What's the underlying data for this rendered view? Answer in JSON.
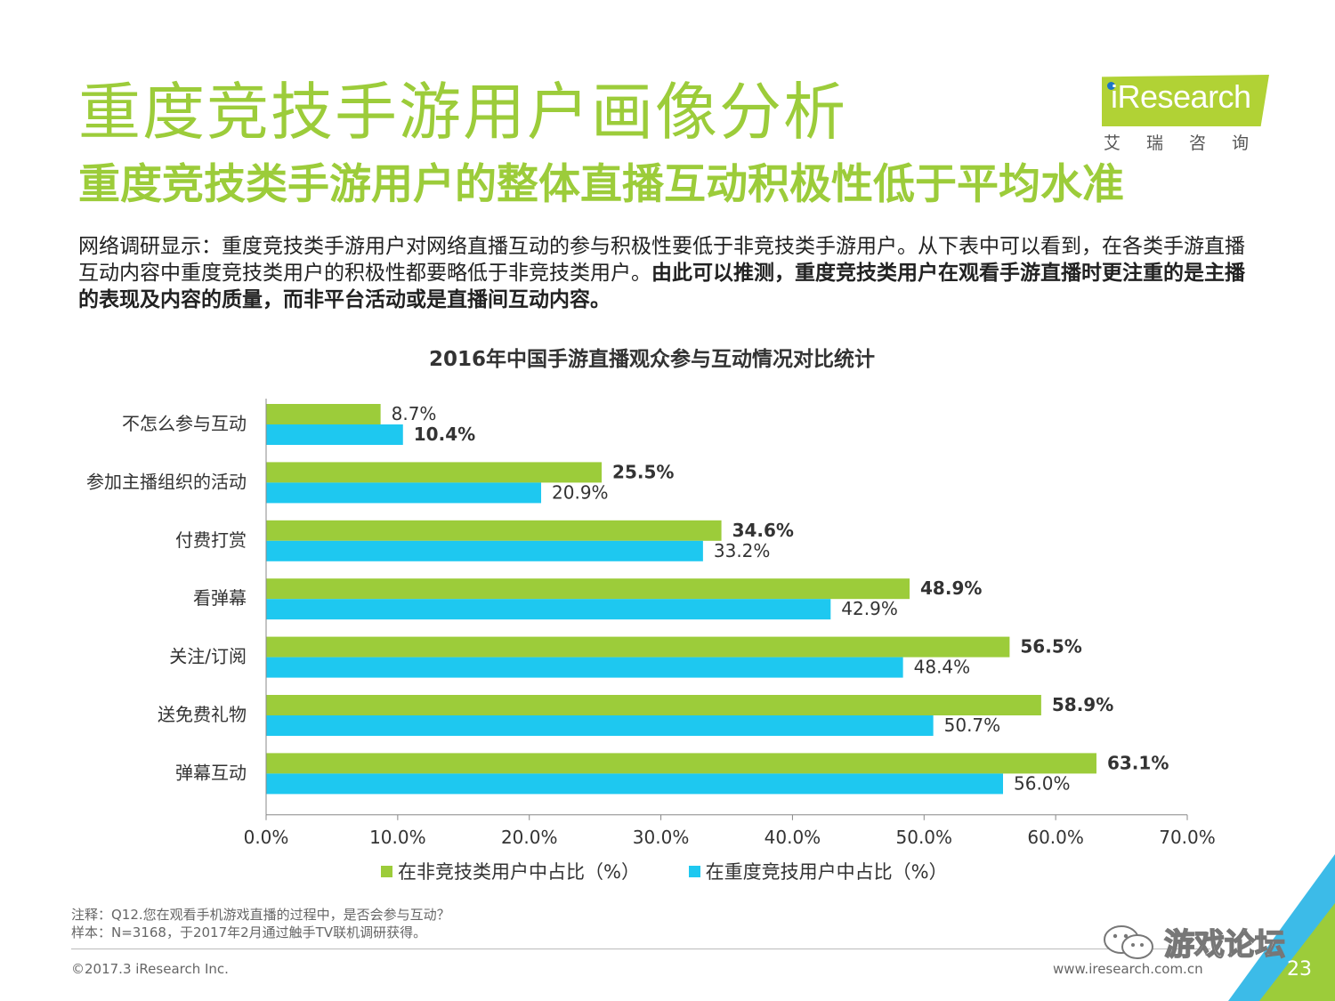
{
  "header": {
    "title": "重度竞技手游用户画像分析",
    "subtitle": "重度竞技类手游用户的整体直播互动积极性低于平均水准"
  },
  "logo": {
    "brand": "iResearch",
    "brand_rest": "Research",
    "brand_cn": "艾瑞咨询"
  },
  "intro": {
    "normal": "网络调研显示：重度竞技类手游用户对网络直播互动的参与积极性要低于非竞技类手游用户。从下表中可以看到，在各类手游直播互动内容中重度竞技类用户的积极性都要略低于非竞技类用户。",
    "bold": "由此可以推测，重度竞技类用户在观看手游直播时更注重的是主播的表现及内容的质量，而非平台活动或是直播间互动内容。"
  },
  "chart_data": {
    "type": "bar",
    "orientation": "horizontal",
    "title": "2016年中国手游直播观众参与互动情况对比统计",
    "categories": [
      "不怎么参与互动",
      "参加主播组织的活动",
      "付费打赏",
      "看弹幕",
      "关注/订阅",
      "送免费礼物",
      "弹幕互动"
    ],
    "series": [
      {
        "name": "在非竞技类用户中占比（%）",
        "values": [
          8.7,
          25.5,
          34.6,
          48.9,
          56.5,
          58.9,
          63.1
        ],
        "labels": [
          "8.7%",
          "25.5%",
          "34.6%",
          "48.9%",
          "56.5%",
          "58.9%",
          "63.1%"
        ],
        "bold_labels": [
          false,
          true,
          true,
          true,
          true,
          true,
          true
        ],
        "color": "#9ccc3a"
      },
      {
        "name": "在重度竞技用户中占比（%）",
        "values": [
          10.4,
          20.9,
          33.2,
          42.9,
          48.4,
          50.7,
          56.0
        ],
        "labels": [
          "10.4%",
          "20.9%",
          "33.2%",
          "42.9%",
          "48.4%",
          "50.7%",
          "56.0%"
        ],
        "bold_labels": [
          true,
          false,
          false,
          false,
          false,
          false,
          false
        ],
        "color": "#1ec8f0"
      }
    ],
    "x_ticks": [
      "0.0%",
      "10.0%",
      "20.0%",
      "30.0%",
      "40.0%",
      "50.0%",
      "60.0%",
      "70.0%"
    ],
    "xlim": [
      0,
      70
    ],
    "legend_position": "bottom"
  },
  "footer": {
    "note1": "注释：Q12.您在观看手机游戏直播的过程中，是否会参与互动？",
    "note2": "样本：N=3168，于2017年2月通过触手TV联机调研获得。",
    "copyright": "©2017.3 iResearch Inc.",
    "website": "www.iresearch.com.cn",
    "watermark": "游戏论坛",
    "page_number": "23"
  },
  "colors": {
    "accent_green": "#9ccc3a",
    "accent_blue": "#1ec8f0",
    "logo_green": "#b1d235"
  }
}
